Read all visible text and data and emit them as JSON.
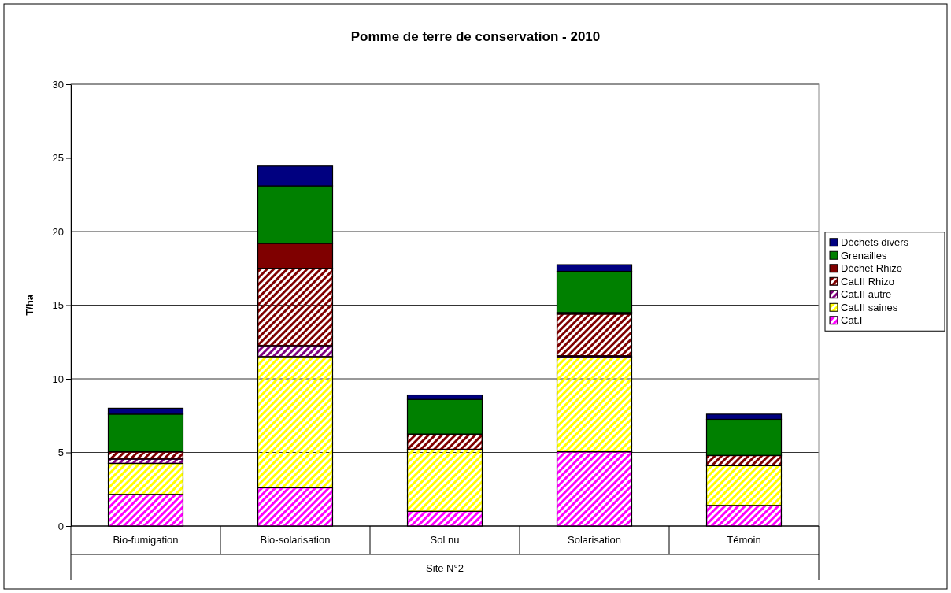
{
  "chart_data": {
    "type": "bar",
    "stacked": true,
    "title": "Pomme de terre de conservation - 2010",
    "xlabel": "Site N°2",
    "ylabel": "T/ha",
    "categories": [
      "Bio-fumigation",
      "Bio-solarisation",
      "Sol nu",
      "Solarisation",
      "Témoin"
    ],
    "series": [
      {
        "name": "Cat.I",
        "color": "#ff00ff",
        "values": [
          2.15,
          2.6,
          1.0,
          5.05,
          1.4
        ]
      },
      {
        "name": "Cat.II saines",
        "color": "#ffff00",
        "values": [
          2.1,
          8.9,
          4.2,
          6.4,
          2.7
        ]
      },
      {
        "name": "Cat.II autre",
        "color": "#800080",
        "values": [
          0.3,
          0.75,
          0,
          0.1,
          0
        ]
      },
      {
        "name": "Cat.II Rhizo",
        "color": "#800000",
        "values": [
          0.5,
          5.25,
          1.05,
          2.85,
          0.7
        ]
      },
      {
        "name": "Déchet Rhizo",
        "color": "#7f0000",
        "values": [
          null,
          1.7,
          0,
          0.1,
          0
        ]
      },
      {
        "name": "Grenailles",
        "color": "#008000",
        "values": [
          2.55,
          3.9,
          2.35,
          2.8,
          2.45
        ]
      },
      {
        "name": "Déchets divers",
        "color": "#000080",
        "values": [
          0.4,
          1.35,
          0.3,
          0.45,
          0.35
        ]
      }
    ],
    "ylim": [
      0,
      30
    ],
    "yticks": [
      0,
      5,
      10,
      15,
      20,
      25,
      30
    ],
    "grid": "y",
    "legend": "right"
  }
}
